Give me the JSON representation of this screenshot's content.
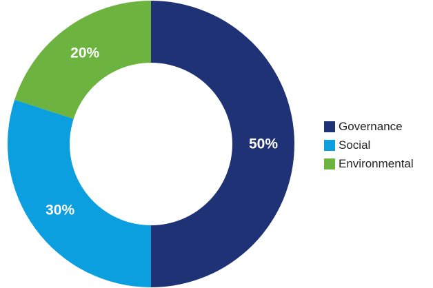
{
  "chart_data": {
    "type": "pie",
    "donut": true,
    "categories": [
      "Governance",
      "Social",
      "Environmental"
    ],
    "values": [
      50,
      30,
      20
    ],
    "labels": [
      "50%",
      "30%",
      "20%"
    ],
    "colors": [
      "#1f3275",
      "#0b9fe0",
      "#6db33f"
    ],
    "title": "",
    "legend_position": "right"
  },
  "legend": {
    "items": [
      {
        "label": "Governance",
        "color": "#1f3275"
      },
      {
        "label": "Social",
        "color": "#0b9fe0"
      },
      {
        "label": "Environmental",
        "color": "#6db33f"
      }
    ]
  }
}
